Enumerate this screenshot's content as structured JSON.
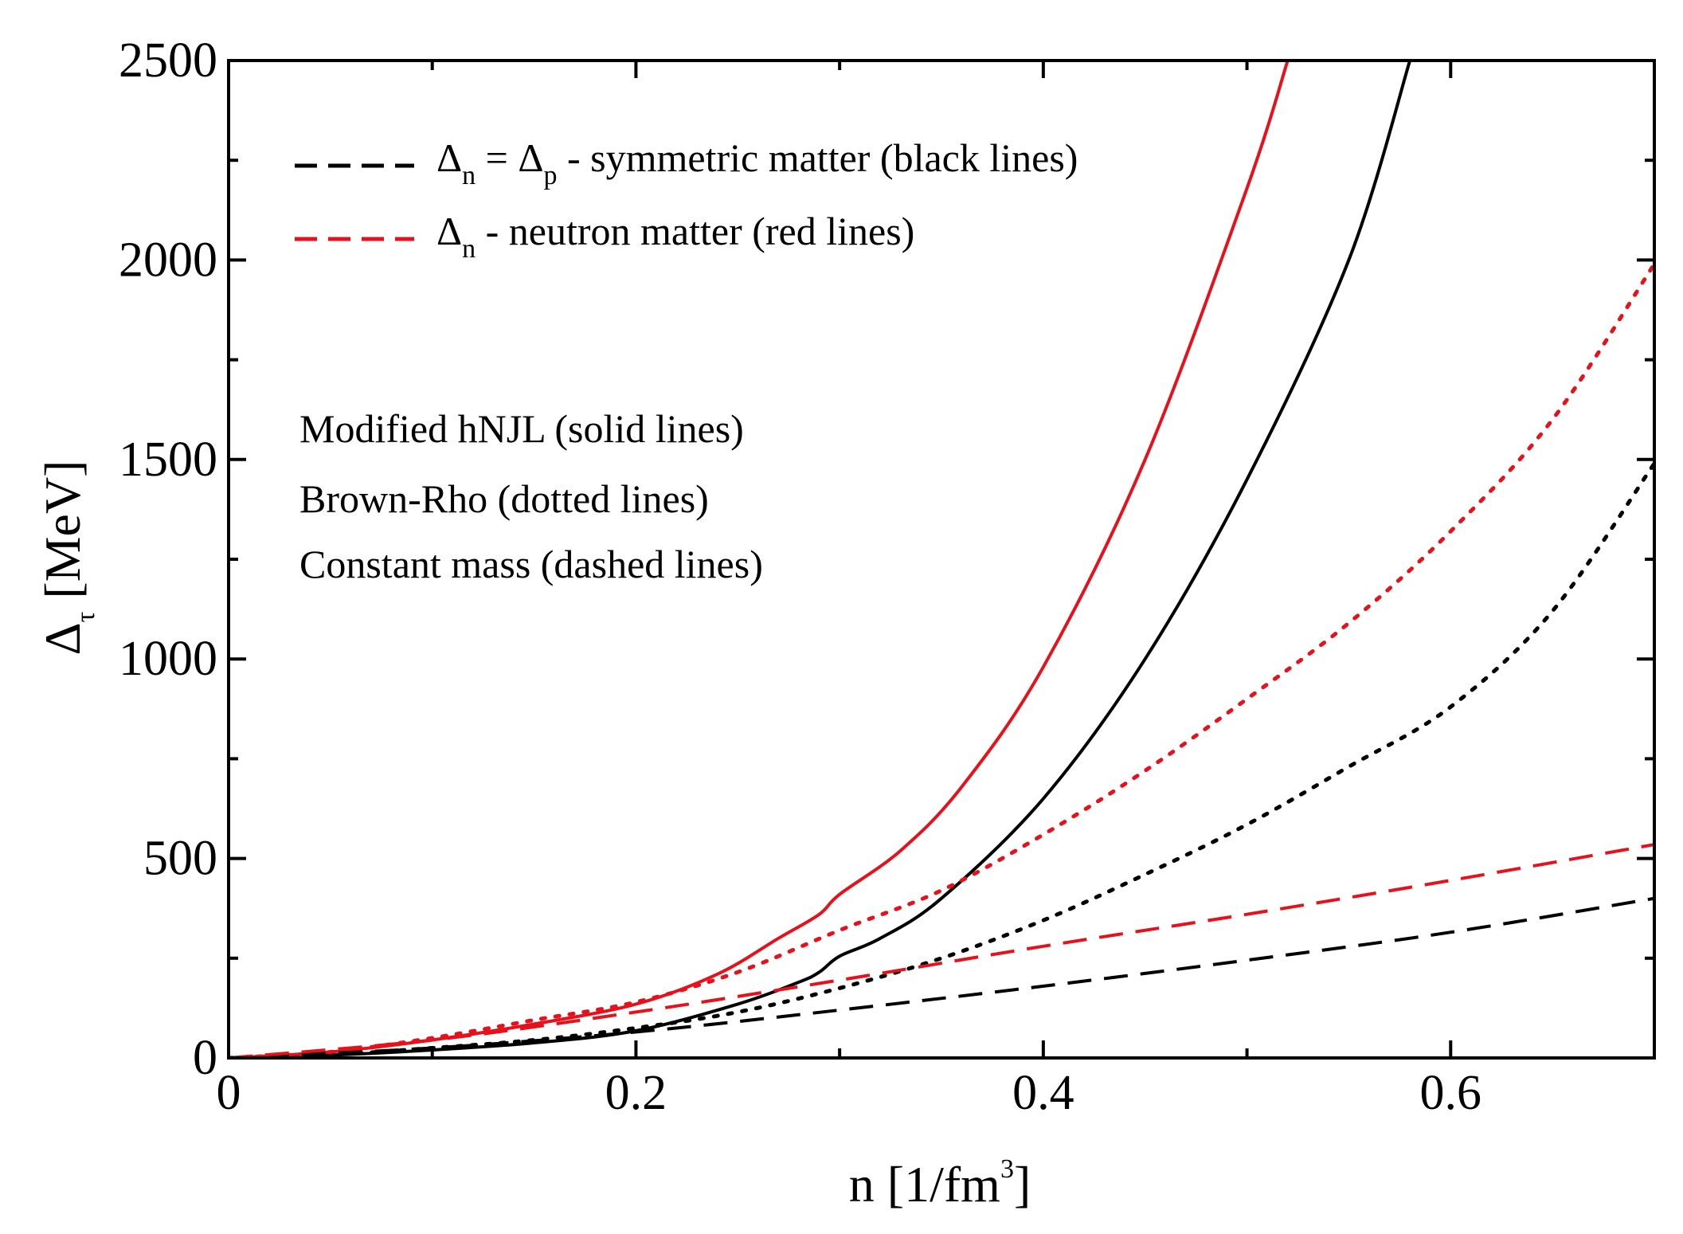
{
  "chart_data": {
    "type": "line",
    "title": "",
    "xlabel": {
      "main": "n [1/fm",
      "sup": "3",
      "close": "]"
    },
    "ylabel": {
      "symbol": "Δ",
      "sub": "τ",
      "unit": " [MeV]"
    },
    "xlim": [
      0,
      0.7
    ],
    "ylim": [
      0,
      2500
    ],
    "xticks": [
      0,
      0.2,
      0.4,
      0.6
    ],
    "xtick_labels": [
      "0",
      "0.2",
      "0.4",
      "0.6"
    ],
    "xminor": [
      0.1,
      0.3,
      0.5
    ],
    "yticks": [
      0,
      500,
      1000,
      1500,
      2000,
      2500
    ],
    "ytick_labels": [
      "0",
      "500",
      "1000",
      "1500",
      "2000",
      "2500"
    ],
    "yminor": [
      250,
      750,
      1250,
      1750,
      2250
    ],
    "grid": false,
    "legend": {
      "position": "top-left",
      "entries": [
        {
          "color": "#000000",
          "style": "dashed",
          "sym1": "Δ",
          "sub1": "n",
          "mid": " = ",
          "sym2": "Δ",
          "sub2": "p",
          "rest": " - symmetric matter (black lines)"
        },
        {
          "color": "#e8101a",
          "style": "dashed",
          "sym1": "Δ",
          "sub1": "n",
          "rest": " - neutron matter (red lines)"
        }
      ]
    },
    "annotations": [
      "Modified hNJL (solid lines)",
      "Brown-Rho (dotted lines)",
      "Constant mass (dashed lines)"
    ],
    "series": [
      {
        "name": "Symmetric matter – Modified hNJL",
        "color": "#000000",
        "style": "solid",
        "x": [
          0,
          0.05,
          0.1,
          0.15,
          0.2,
          0.25,
          0.28,
          0.29,
          0.3,
          0.32,
          0.35,
          0.4,
          0.45,
          0.5,
          0.55,
          0.58
        ],
        "y": [
          0,
          7,
          20,
          38,
          68,
          135,
          190,
          215,
          255,
          300,
          400,
          650,
          1000,
          1450,
          2000,
          2500
        ]
      },
      {
        "name": "Neutron matter – Modified hNJL",
        "color": "#e8101a",
        "style": "solid",
        "x": [
          0,
          0.05,
          0.1,
          0.15,
          0.2,
          0.24,
          0.27,
          0.29,
          0.3,
          0.33,
          0.36,
          0.4,
          0.45,
          0.5,
          0.52
        ],
        "y": [
          0,
          15,
          45,
          85,
          135,
          210,
          300,
          360,
          410,
          520,
          680,
          980,
          1500,
          2180,
          2500
        ]
      },
      {
        "name": "Symmetric matter – Brown-Rho",
        "color": "#000000",
        "style": "dotted",
        "x": [
          0,
          0.05,
          0.1,
          0.15,
          0.2,
          0.25,
          0.3,
          0.35,
          0.4,
          0.45,
          0.5,
          0.55,
          0.6,
          0.65,
          0.7
        ],
        "y": [
          0,
          8,
          25,
          45,
          75,
          115,
          175,
          250,
          345,
          460,
          585,
          730,
          880,
          1120,
          1490
        ]
      },
      {
        "name": "Neutron matter – Brown-Rho",
        "color": "#e8101a",
        "style": "dotted",
        "x": [
          0,
          0.05,
          0.1,
          0.15,
          0.2,
          0.25,
          0.3,
          0.35,
          0.4,
          0.45,
          0.5,
          0.55,
          0.6,
          0.65,
          0.7
        ],
        "y": [
          0,
          15,
          50,
          95,
          140,
          215,
          320,
          420,
          560,
          720,
          900,
          1090,
          1320,
          1600,
          1990
        ]
      },
      {
        "name": "Symmetric matter – Constant mass",
        "color": "#000000",
        "style": "dashed",
        "x": [
          0,
          0.1,
          0.2,
          0.3,
          0.4,
          0.5,
          0.6,
          0.7
        ],
        "y": [
          0,
          25,
          65,
          120,
          180,
          245,
          315,
          400
        ]
      },
      {
        "name": "Neutron matter – Constant mass",
        "color": "#e8101a",
        "style": "dashed",
        "x": [
          0,
          0.1,
          0.2,
          0.3,
          0.4,
          0.5,
          0.6,
          0.7
        ],
        "y": [
          0,
          45,
          115,
          195,
          280,
          360,
          445,
          535
        ]
      }
    ]
  }
}
